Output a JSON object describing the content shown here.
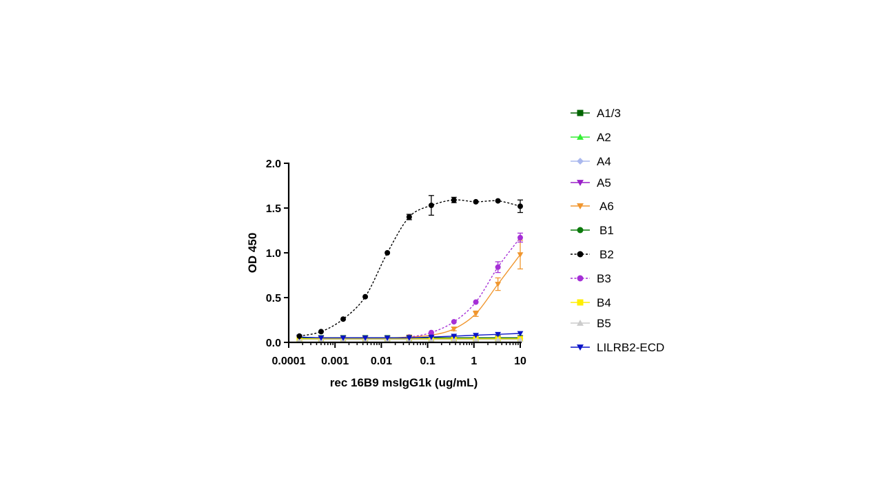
{
  "chart_data": {
    "type": "scatter",
    "xlabel": "rec 16B9 msIgG1k (ug/mL)",
    "ylabel": "OD 450",
    "xscale": "log",
    "xlim": [
      0.0001,
      10
    ],
    "ylim": [
      0,
      2.0
    ],
    "x_ticks": [
      0.0001,
      0.001,
      0.01,
      0.1,
      1,
      10
    ],
    "x_tick_labels": [
      "0.0001",
      "0.001",
      "0.01",
      "0.1",
      "1",
      "10"
    ],
    "y_ticks": [
      0,
      0.5,
      1.0,
      1.5,
      2.0
    ],
    "y_tick_labels": [
      "0.0",
      "0.5",
      "1.0",
      "1.5",
      "2.0"
    ],
    "grid": false,
    "legend_position": "right",
    "x": [
      0.00017,
      0.0005,
      0.0015,
      0.0045,
      0.0135,
      0.04,
      0.12,
      0.37,
      1.1,
      3.3,
      10
    ],
    "series": [
      {
        "name": "A1/3",
        "color": "#006400",
        "marker": "square",
        "line": "solid",
        "values": [
          0.05,
          0.05,
          0.05,
          0.05,
          0.05,
          0.05,
          0.05,
          0.05,
          0.05,
          0.05,
          0.05
        ],
        "errors": []
      },
      {
        "name": "A2",
        "color": "#33ee33",
        "marker": "triangle-up",
        "line": "solid",
        "values": [
          0.04,
          0.04,
          0.04,
          0.04,
          0.04,
          0.04,
          0.04,
          0.04,
          0.04,
          0.04,
          0.04
        ],
        "errors": []
      },
      {
        "name": "A4",
        "color": "#aab8ee",
        "marker": "diamond",
        "line": "solid",
        "values": [
          0.04,
          0.04,
          0.04,
          0.04,
          0.04,
          0.04,
          0.04,
          0.04,
          0.04,
          0.04,
          0.04
        ],
        "errors": []
      },
      {
        "name": "A5",
        "color": "#9a1fc8",
        "marker": "triangle-down",
        "line": "solid",
        "values": [
          0.05,
          0.05,
          0.05,
          0.05,
          0.05,
          0.05,
          0.05,
          0.05,
          0.05,
          0.05,
          0.05
        ],
        "errors": []
      },
      {
        "name": "A6",
        "color": "#f0962e",
        "marker": "triangle-down",
        "line": "solid",
        "values": [
          0.05,
          0.05,
          0.05,
          0.05,
          0.05,
          0.06,
          0.08,
          0.15,
          0.32,
          0.65,
          0.98
        ],
        "errors": [
          0,
          0,
          0,
          0,
          0,
          0,
          0,
          0.02,
          0.03,
          0.07,
          0.16
        ]
      },
      {
        "name": "B1",
        "color": "#0c7a0c",
        "marker": "circle",
        "line": "solid",
        "values": [
          0.05,
          0.05,
          0.05,
          0.05,
          0.05,
          0.05,
          0.05,
          0.05,
          0.05,
          0.05,
          0.05
        ],
        "errors": []
      },
      {
        "name": "B2",
        "color": "#000000",
        "marker": "circle",
        "line": "dotted",
        "values": [
          0.07,
          0.12,
          0.26,
          0.51,
          1.0,
          1.4,
          1.53,
          1.59,
          1.57,
          1.58,
          1.52
        ],
        "errors": [
          0,
          0,
          0,
          0,
          0,
          0.03,
          0.11,
          0.03,
          0,
          0,
          0.07
        ]
      },
      {
        "name": "B3",
        "color": "#a52fd6",
        "marker": "circle",
        "line": "dotted",
        "values": [
          0.05,
          0.05,
          0.05,
          0.05,
          0.05,
          0.06,
          0.11,
          0.23,
          0.45,
          0.84,
          1.17
        ],
        "errors": [
          0,
          0,
          0,
          0,
          0,
          0,
          0,
          0,
          0,
          0.06,
          0.05
        ]
      },
      {
        "name": "B4",
        "color": "#ffee00",
        "marker": "square",
        "line": "solid",
        "values": [
          0.04,
          0.04,
          0.04,
          0.04,
          0.04,
          0.04,
          0.04,
          0.04,
          0.04,
          0.04,
          0.04
        ],
        "errors": []
      },
      {
        "name": "B5",
        "color": "#cccccc",
        "marker": "triangle-up",
        "line": "solid",
        "values": [
          0.03,
          0.03,
          0.03,
          0.03,
          0.03,
          0.03,
          0.03,
          0.03,
          0.03,
          0.03,
          0.03
        ],
        "errors": []
      },
      {
        "name": "LILRB2-ECD",
        "color": "#0a14c8",
        "marker": "triangle-down",
        "line": "solid",
        "values": [
          0.06,
          0.05,
          0.05,
          0.05,
          0.05,
          0.05,
          0.06,
          0.07,
          0.08,
          0.09,
          0.1
        ],
        "errors": []
      }
    ]
  }
}
